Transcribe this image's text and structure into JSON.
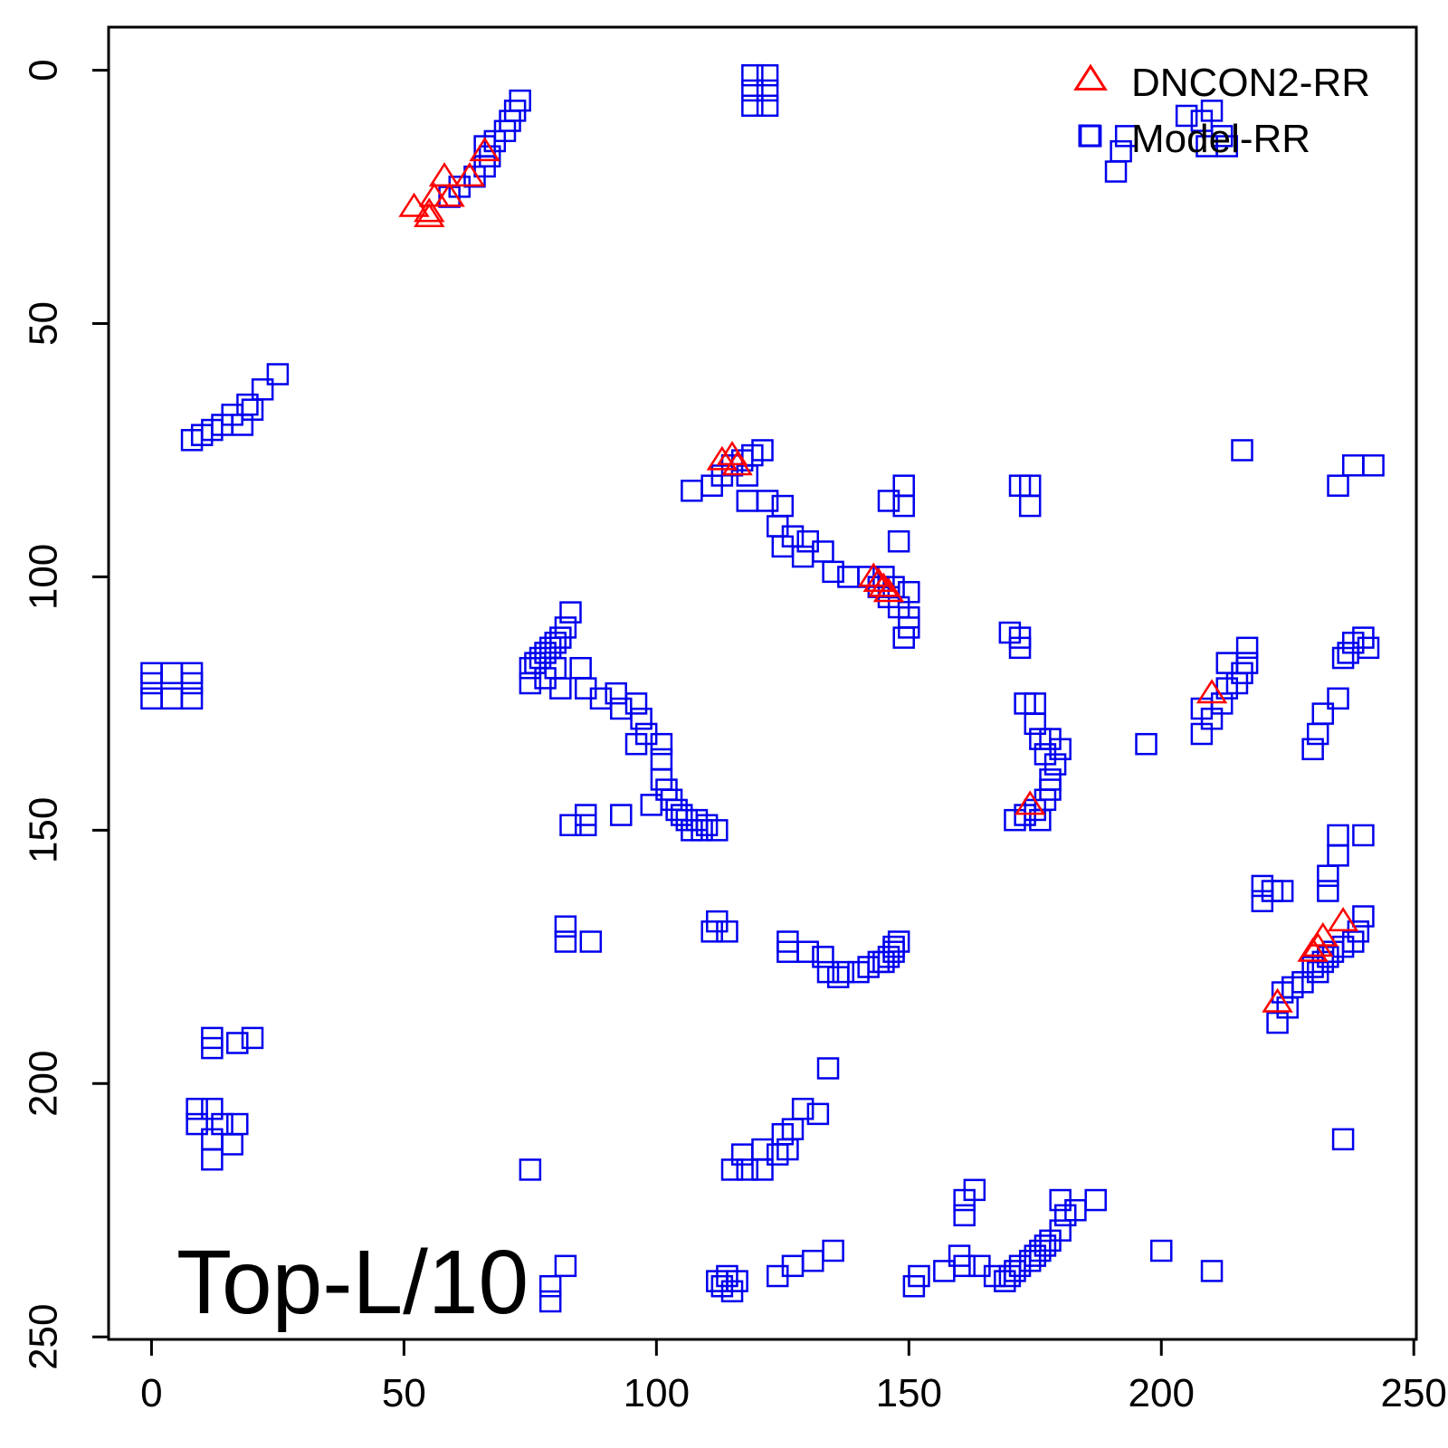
{
  "chart_data": {
    "type": "scatter",
    "title": "",
    "xlabel": "",
    "ylabel": "",
    "xlim": [
      -8.5,
      250.5
    ],
    "ylim": [
      -8.5,
      250.5
    ],
    "y_axis_inverted": true,
    "x_ticks": [
      0,
      50,
      100,
      150,
      200,
      250
    ],
    "y_ticks": [
      0,
      50,
      100,
      150,
      200,
      250
    ],
    "grid": false,
    "annotation": "Top-L/10",
    "legend": {
      "placement": "top-right",
      "entries": [
        {
          "label": "DNCON2-RR",
          "marker": "triangle",
          "color": "#ff0000"
        },
        {
          "label": "Model-RR",
          "marker": "square",
          "color": "#0000ee"
        }
      ]
    },
    "series": [
      {
        "name": "DNCON2-RR",
        "marker": "triangle",
        "color": "#ff0000",
        "points": [
          [
            52,
            27
          ],
          [
            55,
            28
          ],
          [
            55,
            29
          ],
          [
            56,
            25
          ],
          [
            58,
            21
          ],
          [
            59,
            25
          ],
          [
            63,
            21
          ],
          [
            66,
            16
          ],
          [
            113,
            77
          ],
          [
            115,
            76
          ],
          [
            116,
            78
          ],
          [
            143,
            100
          ],
          [
            144,
            101
          ],
          [
            145,
            102
          ],
          [
            146,
            103
          ],
          [
            174,
            145
          ],
          [
            210,
            123
          ],
          [
            223,
            184
          ],
          [
            230,
            174
          ],
          [
            231,
            173
          ],
          [
            232,
            171
          ],
          [
            236,
            168
          ]
        ]
      },
      {
        "name": "Model-RR",
        "marker": "square",
        "color": "#0000ee",
        "points": [
          [
            119,
            1
          ],
          [
            122,
            1
          ],
          [
            119,
            4
          ],
          [
            122,
            4
          ],
          [
            119,
            7
          ],
          [
            122,
            7
          ],
          [
            73,
            6
          ],
          [
            72,
            8
          ],
          [
            71,
            10
          ],
          [
            70,
            12
          ],
          [
            68,
            14
          ],
          [
            66,
            15
          ],
          [
            67,
            17
          ],
          [
            66,
            19
          ],
          [
            64,
            21
          ],
          [
            61,
            23
          ],
          [
            59,
            25
          ],
          [
            186,
            13
          ],
          [
            193,
            13
          ],
          [
            192,
            16
          ],
          [
            191,
            20
          ],
          [
            205,
            9
          ],
          [
            208,
            10
          ],
          [
            210,
            8
          ],
          [
            209,
            15
          ],
          [
            212,
            13
          ],
          [
            213,
            15
          ],
          [
            25,
            60
          ],
          [
            22,
            63
          ],
          [
            19,
            66
          ],
          [
            16,
            68
          ],
          [
            14,
            70
          ],
          [
            12,
            71
          ],
          [
            10,
            72
          ],
          [
            8,
            73
          ],
          [
            20,
            67
          ],
          [
            18,
            70
          ],
          [
            216,
            75
          ],
          [
            238,
            78
          ],
          [
            242,
            78
          ],
          [
            235,
            82
          ],
          [
            107,
            83
          ],
          [
            111,
            82
          ],
          [
            113,
            80
          ],
          [
            115,
            78
          ],
          [
            117,
            77
          ],
          [
            119,
            76
          ],
          [
            121,
            75
          ],
          [
            118,
            80
          ],
          [
            118,
            85
          ],
          [
            122,
            85
          ],
          [
            125,
            86
          ],
          [
            124,
            90
          ],
          [
            127,
            92
          ],
          [
            125,
            94
          ],
          [
            130,
            93
          ],
          [
            129,
            96
          ],
          [
            133,
            95
          ],
          [
            135,
            99
          ],
          [
            138,
            100
          ],
          [
            142,
            100
          ],
          [
            144,
            102
          ],
          [
            146,
            104
          ],
          [
            148,
            106
          ],
          [
            150,
            108
          ],
          [
            150,
            110
          ],
          [
            149,
            112
          ],
          [
            150,
            103
          ],
          [
            147,
            102
          ],
          [
            145,
            100
          ],
          [
            146,
            85
          ],
          [
            149,
            82
          ],
          [
            149,
            86
          ],
          [
            148,
            93
          ],
          [
            172,
            82
          ],
          [
            174,
            82
          ],
          [
            174,
            86
          ],
          [
            83,
            107
          ],
          [
            82,
            110
          ],
          [
            81,
            112
          ],
          [
            80,
            113
          ],
          [
            79,
            114
          ],
          [
            78,
            115
          ],
          [
            77,
            116
          ],
          [
            76,
            117
          ],
          [
            75,
            118
          ],
          [
            80,
            118
          ],
          [
            78,
            120
          ],
          [
            75,
            121
          ],
          [
            81,
            122
          ],
          [
            85,
            118
          ],
          [
            86,
            122
          ],
          [
            89,
            124
          ],
          [
            92,
            123
          ],
          [
            93,
            126
          ],
          [
            96,
            125
          ],
          [
            97,
            128
          ],
          [
            98,
            131
          ],
          [
            96,
            133
          ],
          [
            101,
            133
          ],
          [
            101,
            136
          ],
          [
            101,
            140
          ],
          [
            102,
            142
          ],
          [
            103,
            144
          ],
          [
            104,
            146
          ],
          [
            105,
            147
          ],
          [
            106,
            148
          ],
          [
            108,
            148
          ],
          [
            110,
            149
          ],
          [
            112,
            150
          ],
          [
            109,
            150
          ],
          [
            107,
            150
          ],
          [
            99,
            145
          ],
          [
            93,
            147
          ],
          [
            83,
            149
          ],
          [
            86,
            147
          ],
          [
            86,
            149
          ],
          [
            170,
            111
          ],
          [
            172,
            112
          ],
          [
            172,
            114
          ],
          [
            173,
            125
          ],
          [
            175,
            125
          ],
          [
            175,
            129
          ],
          [
            176,
            132
          ],
          [
            178,
            132
          ],
          [
            180,
            134
          ],
          [
            177,
            135
          ],
          [
            179,
            137
          ],
          [
            178,
            140
          ],
          [
            178,
            142
          ],
          [
            177,
            144
          ],
          [
            175,
            146
          ],
          [
            173,
            147
          ],
          [
            171,
            148
          ],
          [
            176,
            148
          ],
          [
            217,
            114
          ],
          [
            217,
            117
          ],
          [
            216,
            119
          ],
          [
            215,
            121
          ],
          [
            213,
            117
          ],
          [
            213,
            122
          ],
          [
            212,
            125
          ],
          [
            210,
            128
          ],
          [
            208,
            126
          ],
          [
            208,
            131
          ],
          [
            197,
            133
          ],
          [
            240,
            112
          ],
          [
            238,
            113
          ],
          [
            237,
            115
          ],
          [
            236,
            116
          ],
          [
            241,
            114
          ],
          [
            235,
            124
          ],
          [
            232,
            127
          ],
          [
            231,
            131
          ],
          [
            230,
            134
          ],
          [
            0,
            119
          ],
          [
            4,
            119
          ],
          [
            8,
            119
          ],
          [
            0,
            124
          ],
          [
            4,
            124
          ],
          [
            8,
            124
          ],
          [
            0,
            121
          ],
          [
            8,
            121
          ],
          [
            235,
            151
          ],
          [
            240,
            151
          ],
          [
            235,
            155
          ],
          [
            233,
            159
          ],
          [
            233,
            162
          ],
          [
            220,
            161
          ],
          [
            222,
            162
          ],
          [
            224,
            162
          ],
          [
            220,
            164
          ],
          [
            240,
            167
          ],
          [
            239,
            170
          ],
          [
            238,
            172
          ],
          [
            236,
            173
          ],
          [
            234,
            174
          ],
          [
            233,
            175
          ],
          [
            232,
            176
          ],
          [
            230,
            177
          ],
          [
            231,
            178
          ],
          [
            228,
            180
          ],
          [
            226,
            181
          ],
          [
            224,
            182
          ],
          [
            225,
            185
          ],
          [
            223,
            188
          ],
          [
            82,
            169
          ],
          [
            82,
            172
          ],
          [
            87,
            172
          ],
          [
            112,
            168
          ],
          [
            114,
            170
          ],
          [
            111,
            170
          ],
          [
            126,
            172
          ],
          [
            126,
            174
          ],
          [
            130,
            174
          ],
          [
            133,
            175
          ],
          [
            134,
            178
          ],
          [
            136,
            179
          ],
          [
            137,
            178
          ],
          [
            140,
            178
          ],
          [
            142,
            177
          ],
          [
            144,
            176
          ],
          [
            146,
            175
          ],
          [
            147,
            174
          ],
          [
            148,
            172
          ],
          [
            147,
            173
          ],
          [
            145,
            176
          ],
          [
            12,
            193
          ],
          [
            17,
            192
          ],
          [
            20,
            191
          ],
          [
            12,
            191
          ],
          [
            134,
            197
          ],
          [
            9,
            205
          ],
          [
            12,
            205
          ],
          [
            9,
            208
          ],
          [
            14,
            208
          ],
          [
            17,
            208
          ],
          [
            12,
            211
          ],
          [
            16,
            212
          ],
          [
            12,
            215
          ],
          [
            75,
            217
          ],
          [
            236,
            211
          ],
          [
            129,
            205
          ],
          [
            132,
            206
          ],
          [
            127,
            209
          ],
          [
            126,
            213
          ],
          [
            124,
            214
          ],
          [
            121,
            213
          ],
          [
            117,
            214
          ],
          [
            115,
            217
          ],
          [
            118,
            217
          ],
          [
            121,
            217
          ],
          [
            125,
            210
          ],
          [
            161,
            223
          ],
          [
            163,
            221
          ],
          [
            161,
            226
          ],
          [
            180,
            223
          ],
          [
            183,
            225
          ],
          [
            187,
            223
          ],
          [
            181,
            226
          ],
          [
            180,
            229
          ],
          [
            178,
            231
          ],
          [
            177,
            232
          ],
          [
            176,
            233
          ],
          [
            175,
            234
          ],
          [
            174,
            235
          ],
          [
            172,
            236
          ],
          [
            171,
            237
          ],
          [
            170,
            238
          ],
          [
            169,
            239
          ],
          [
            167,
            238
          ],
          [
            164,
            236
          ],
          [
            161,
            236
          ],
          [
            157,
            237
          ],
          [
            152,
            238
          ],
          [
            151,
            240
          ],
          [
            160,
            234
          ],
          [
            135,
            233
          ],
          [
            131,
            235
          ],
          [
            127,
            236
          ],
          [
            124,
            238
          ],
          [
            82,
            236
          ],
          [
            114,
            238
          ],
          [
            116,
            239
          ],
          [
            113,
            240
          ],
          [
            115,
            241
          ],
          [
            112,
            239
          ],
          [
            79,
            240
          ],
          [
            79,
            243
          ],
          [
            210,
            237
          ],
          [
            200,
            233
          ]
        ]
      }
    ]
  }
}
